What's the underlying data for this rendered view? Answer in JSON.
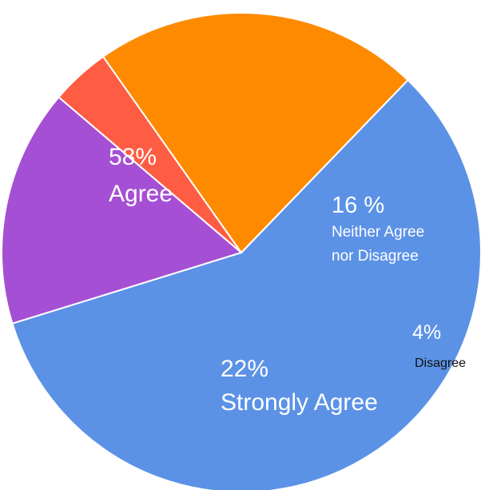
{
  "chart_data": {
    "type": "pie",
    "title": "",
    "slices": [
      {
        "label": "Agree",
        "percent_label": "58%",
        "value": 58,
        "color": "#5b92e6"
      },
      {
        "label": "Neither Agree nor Disagree",
        "label_lines": [
          "Neither Agree",
          "nor Disagree"
        ],
        "percent_label": "16 %",
        "value": 16,
        "color": "#a54fd4"
      },
      {
        "label": "Disagree",
        "percent_label": "4%",
        "value": 4,
        "color": "#fe5d44"
      },
      {
        "label": "Strongly Agree",
        "percent_label": "22%",
        "value": 22,
        "color": "#fe8a00"
      }
    ],
    "start_angle_deg": 44,
    "direction": "clockwise",
    "legend": "none"
  }
}
